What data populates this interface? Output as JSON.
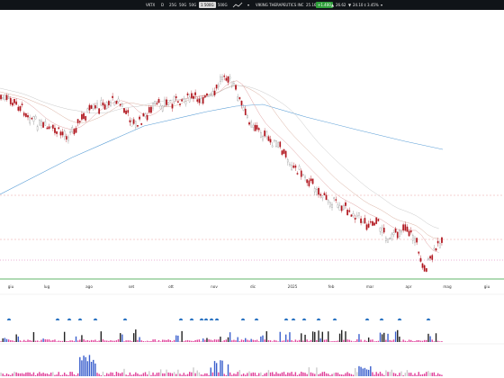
{
  "toolbar": {
    "ticker": "VKTX",
    "timeframe_short": "D",
    "intervals": [
      "25G",
      "50G",
      "50G"
    ],
    "interval_active": "1 500G",
    "range": "2 500G",
    "drawing_tool_icon": "line-chart-icon",
    "symbol_name": "VIKING THERAPEUTICS INC",
    "last_price": "25.16",
    "change": "+1.400",
    "high_label": "26.62",
    "low_label": "24.10",
    "pct_label": "3.45%",
    "accent_green": "#2e9e3a",
    "bg_color": "#101418"
  },
  "axis": {
    "months": [
      "giu",
      "lug",
      "ago",
      "set",
      "ott",
      "nov",
      "dic",
      "2025",
      "feb",
      "mar",
      "apr",
      "mag",
      "giu"
    ]
  },
  "colors": {
    "candle_up": "#8a8a8a",
    "candle_down": "#b0151d",
    "ma_long": "#5a9ed6",
    "ma_short": "#e0a0a0",
    "support_line": "#2e9e3a",
    "volume_up": "#3a5fcd",
    "volume_down": "#e0409a",
    "volume_black": "#222222",
    "marker": "#2a73c2"
  },
  "chart_data": {
    "type": "candlestick",
    "x": [
      "giu",
      "lug",
      "ago",
      "set",
      "ott",
      "nov",
      "dic",
      "2025",
      "feb",
      "mar",
      "apr",
      "mag"
    ],
    "close_approx": [
      77,
      70,
      75,
      68,
      78,
      86,
      55,
      52,
      38,
      33,
      27,
      27
    ],
    "ma_long_shape": "rising from giu to nov then falling",
    "series": [
      {
        "name": "",
        "values": [
          77,
          70,
          75,
          68,
          78,
          86,
          55,
          52,
          38,
          33,
          27,
          27
        ]
      }
    ]
  }
}
